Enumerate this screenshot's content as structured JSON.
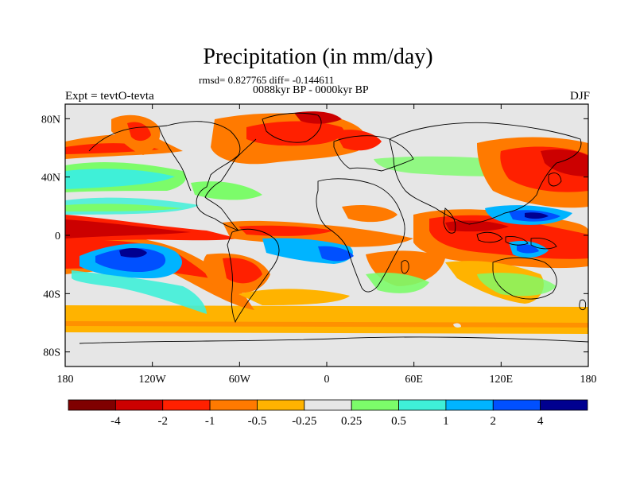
{
  "title": "Precipitation (in mm/day)",
  "stats_line": "rmsd= 0.827765 diff= -0.144611",
  "period_line": "0088kyr BP - 0000kyr BP",
  "experiment_label": "Expt = tevtO-tevta",
  "season_label": "DJF",
  "lat_ticks": [
    {
      "label": "80N",
      "value": 80
    },
    {
      "label": "40N",
      "value": 40
    },
    {
      "label": "0",
      "value": 0
    },
    {
      "label": "40S",
      "value": -40
    },
    {
      "label": "80S",
      "value": -80
    }
  ],
  "lon_ticks": [
    {
      "label": "180",
      "value": -180
    },
    {
      "label": "120W",
      "value": -120
    },
    {
      "label": "60W",
      "value": -60
    },
    {
      "label": "0",
      "value": 0
    },
    {
      "label": "60E",
      "value": 60
    },
    {
      "label": "120E",
      "value": 120
    },
    {
      "label": "180",
      "value": 180
    }
  ],
  "colorbar": {
    "colors": [
      "#7f0000",
      "#cc0000",
      "#ff2000",
      "#ff7a00",
      "#ffb300",
      "#e6e6e6",
      "#7cfc6a",
      "#3ff0d8",
      "#00b4ff",
      "#0050ff",
      "#000090"
    ],
    "labels": [
      "-4",
      "-2",
      "-1",
      "-0.5",
      "-0.25",
      "0.25",
      "0.5",
      "1",
      "2",
      "4"
    ]
  },
  "map_background": "#e6e6e6"
}
